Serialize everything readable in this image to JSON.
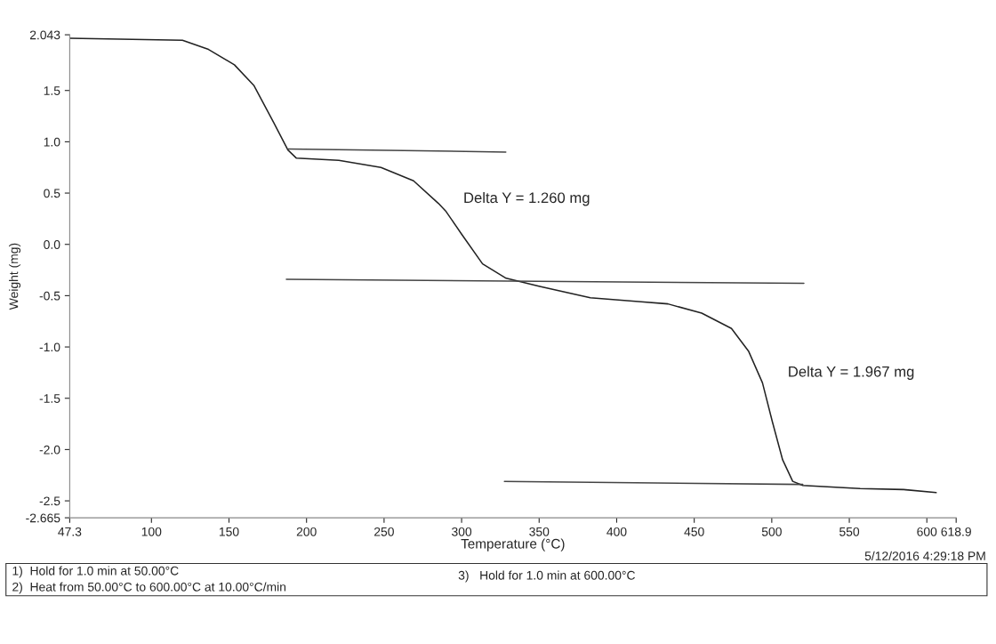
{
  "chart_data": {
    "type": "line",
    "xlabel": "Temperature (°C)",
    "ylabel": "Weight (mg)",
    "xlim": [
      47.3,
      618.9
    ],
    "xticks": [
      47.3,
      100,
      150,
      200,
      250,
      300,
      350,
      400,
      450,
      500,
      550,
      600,
      618.9
    ],
    "ylim": [
      -2.665,
      2.043
    ],
    "yticks": [
      -2.665,
      -2.5,
      {
        "value": -2,
        "label": "-2.0"
      },
      -1.5,
      {
        "value": -1,
        "label": "-1.0"
      },
      -0.5,
      {
        "value": 0,
        "label": "0.0"
      },
      0.5,
      {
        "value": 1,
        "label": "1.0"
      },
      1.5,
      2.043
    ],
    "grid": false,
    "marker": "none",
    "line_style": "solid",
    "series": [
      {
        "color": "#222222",
        "x": [
          47.3,
          120,
          136.8,
          153.5,
          166,
          178.7,
          188,
          193.5,
          220.8,
          248,
          269,
          285,
          290,
          300,
          313.5,
          328.7,
          350.4,
          383,
          415.7,
          433,
          454.8,
          474,
          485,
          494,
          500.4,
          507,
          513.5,
          520,
          557,
          585,
          606
        ],
        "values": [
          2.01,
          1.99,
          1.9,
          1.75,
          1.55,
          1.19,
          0.92,
          0.84,
          0.82,
          0.75,
          0.62,
          0.4,
          0.32,
          0.1,
          -0.19,
          -0.33,
          -0.41,
          -0.52,
          -0.56,
          -0.58,
          -0.67,
          -0.82,
          -1.04,
          -1.35,
          -1.73,
          -2.1,
          -2.31,
          -2.35,
          -2.38,
          -2.39,
          -2.42
        ]
      },
      {
        "color": "#444444",
        "x": [
          188,
          328.5
        ],
        "values": [
          0.93,
          0.9
        ]
      },
      {
        "color": "#444444",
        "x": [
          187,
          520.7
        ],
        "values": [
          -0.34,
          -0.38
        ]
      },
      {
        "color": "#444444",
        "x": [
          327.6,
          520
        ],
        "values": [
          -2.31,
          -2.34
        ]
      }
    ],
    "annotations": [
      "Delta Y = 1.260 mg",
      "Delta Y = 1.967 mg",
      "1)  Hold for 1.0 min at 50.00°C",
      "2)  Heat from 50.00°C to 600.00°C at 10.00°C/min",
      "3)   Hold for 1.0 min at 600.00°C",
      "5/12/2016 4:29:18 PM"
    ]
  }
}
